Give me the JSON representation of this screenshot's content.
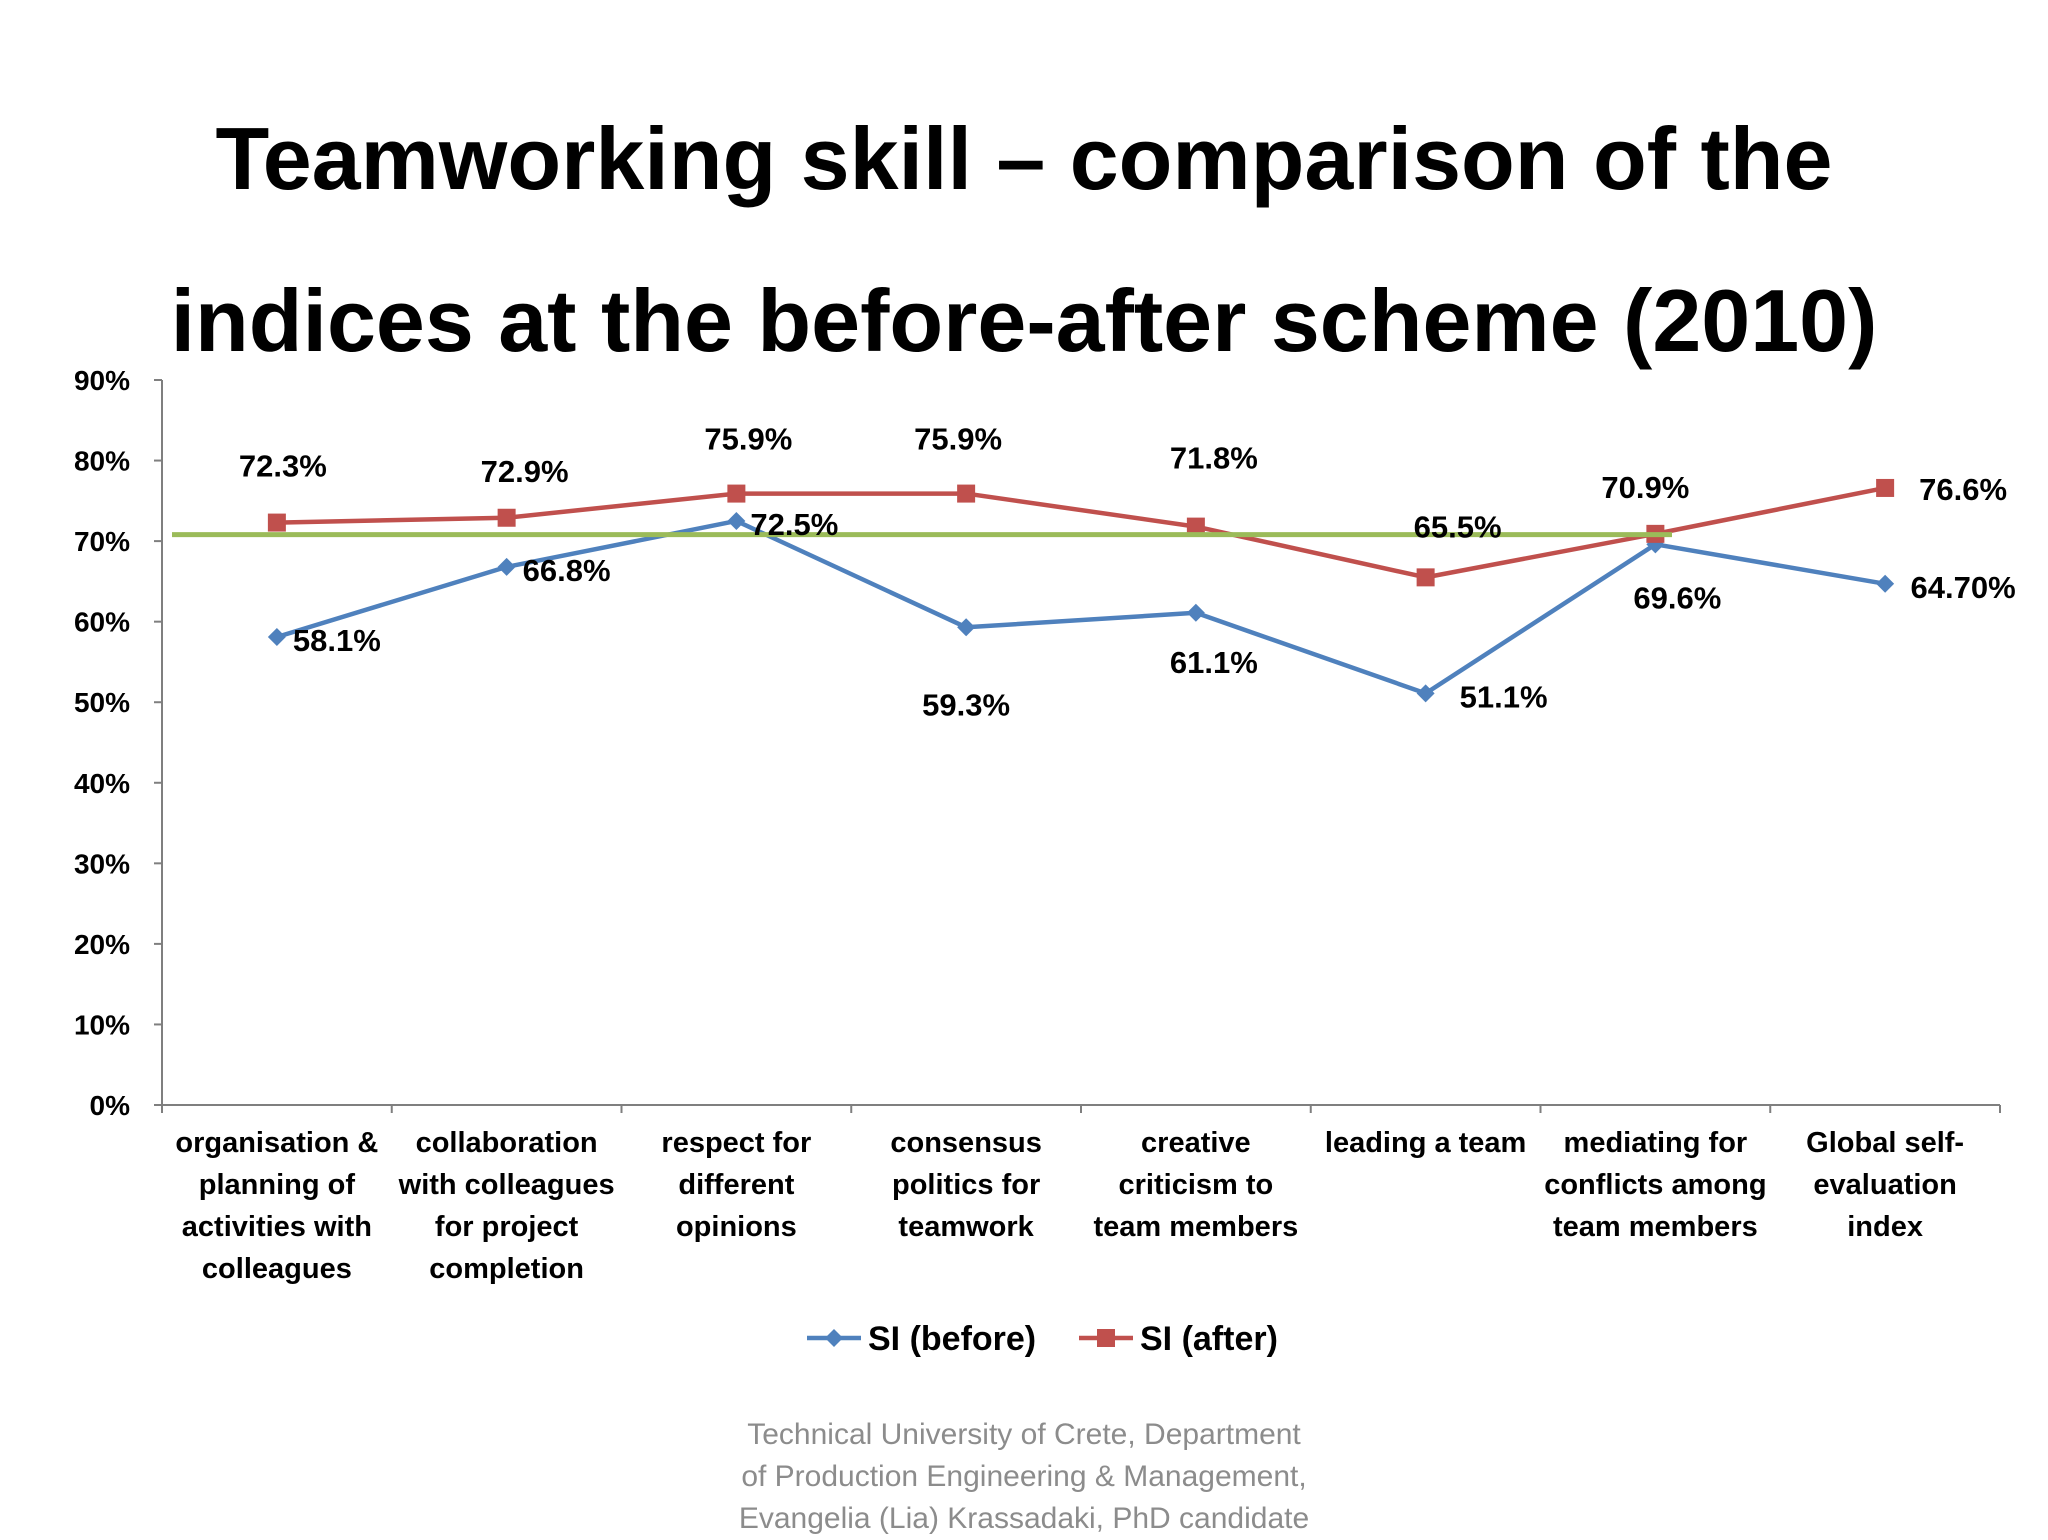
{
  "slide": {
    "title_lines": [
      "Teamworking skill – comparison of the",
      "indices at the before-after scheme (2010)"
    ],
    "footer_lines": [
      "Technical University of Crete, Department",
      "of Production Engineering & Management,",
      "Evangelia (Lia) Krassadaki, PhD candidate"
    ]
  },
  "chart_data": {
    "type": "line",
    "title": "",
    "xlabel": "",
    "ylabel": "",
    "ylim": [
      0,
      90
    ],
    "y_ticks": [
      "0%",
      "10%",
      "20%",
      "30%",
      "40%",
      "50%",
      "60%",
      "70%",
      "80%",
      "90%"
    ],
    "categories": [
      [
        "organisation &",
        "planning of",
        "activities with",
        "colleagues"
      ],
      [
        "collaboration",
        "with colleagues",
        "for project",
        "completion"
      ],
      [
        "respect for",
        "different",
        "opinions"
      ],
      [
        "consensus",
        "politics for",
        "teamwork"
      ],
      [
        "creative",
        "criticism to",
        "team members"
      ],
      [
        "leading a team"
      ],
      [
        "mediating for",
        "conflicts among",
        "team members"
      ],
      [
        "Global self-",
        "evaluation",
        "index"
      ]
    ],
    "series": [
      {
        "name": "SI (before)",
        "color": "#4f81bd",
        "marker": "diamond",
        "values": [
          58.1,
          66.8,
          72.5,
          59.3,
          61.1,
          51.1,
          69.6,
          64.7
        ],
        "labels": [
          "58.1%",
          "66.8%",
          "72.5%",
          "59.3%",
          "61.1%",
          "51.1%",
          "69.6%",
          "64.70%"
        ]
      },
      {
        "name": "SI (after)",
        "color": "#c0504d",
        "marker": "square",
        "values": [
          72.3,
          72.9,
          75.9,
          75.9,
          71.8,
          65.5,
          70.9,
          76.6
        ],
        "labels": [
          "72.3%",
          "72.9%",
          "75.9%",
          "75.9%",
          "71.8%",
          "65.5%",
          "70.9%",
          "76.6%"
        ]
      }
    ],
    "reference_line": {
      "value": 70.8,
      "color": "#9bbb59"
    },
    "grid": false,
    "legend": "bottom"
  }
}
